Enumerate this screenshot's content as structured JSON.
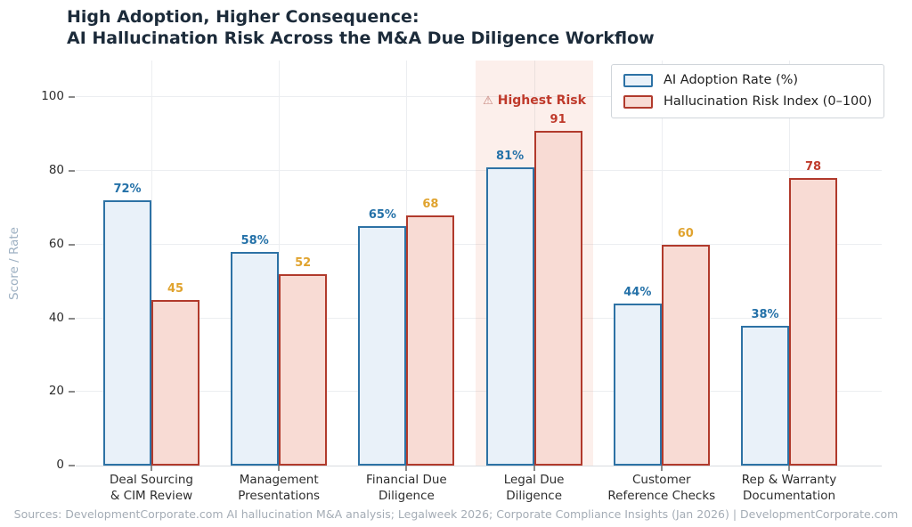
{
  "title": "High Adoption, Higher Consequence:\nAI Hallucination Risk Across the M&A Due Diligence Workflow",
  "chart_data": {
    "type": "bar",
    "categories": [
      "Deal Sourcing\n& CIM Review",
      "Management\nPresentations",
      "Financial Due\nDiligence",
      "Legal Due\nDiligence",
      "Customer\nReference Checks",
      "Rep & Warranty\nDocumentation"
    ],
    "series": [
      {
        "name": "AI Adoption Rate (%)",
        "values": [
          72,
          58,
          65,
          81,
          44,
          38
        ],
        "value_labels": [
          "72%",
          "58%",
          "65%",
          "81%",
          "44%",
          "38%"
        ],
        "fill": "#e9f1f9",
        "border": "#2d72a5",
        "label_styles": [
          "info",
          "info",
          "info",
          "info",
          "info",
          "info"
        ]
      },
      {
        "name": "Hallucination Risk Index (0–100)",
        "values": [
          45,
          52,
          68,
          91,
          60,
          78
        ],
        "value_labels": [
          "45",
          "52",
          "68",
          "91",
          "60",
          "78"
        ],
        "fill": "#f8dbd4",
        "border": "#b13a2c",
        "label_styles": [
          "warn",
          "warn",
          "warn",
          "danger",
          "warn",
          "danger"
        ]
      }
    ],
    "label_colors": {
      "info": "#2471a8",
      "warn": "#e0a32e",
      "danger": "#bf3a2b"
    },
    "ylabel": "Score / Rate",
    "yticks": [
      0,
      20,
      40,
      60,
      80,
      100
    ],
    "ylim": [
      0,
      110
    ],
    "grid": true,
    "legend_position": "top-right",
    "highlight": {
      "category_index": 3,
      "bg": "rgba(233,128,102,0.13)",
      "annotation_icon": "⚠",
      "annotation_text": "Highest Risk",
      "annotation_color": "#bf3a2b"
    }
  },
  "footer": {
    "source_text": "Sources: DevelopmentCorporate.com AI hallucination M&A analysis; Legalweek 2026; Corporate Compliance Insights (Jan 2026)  |  DevelopmentCorporate.com"
  }
}
